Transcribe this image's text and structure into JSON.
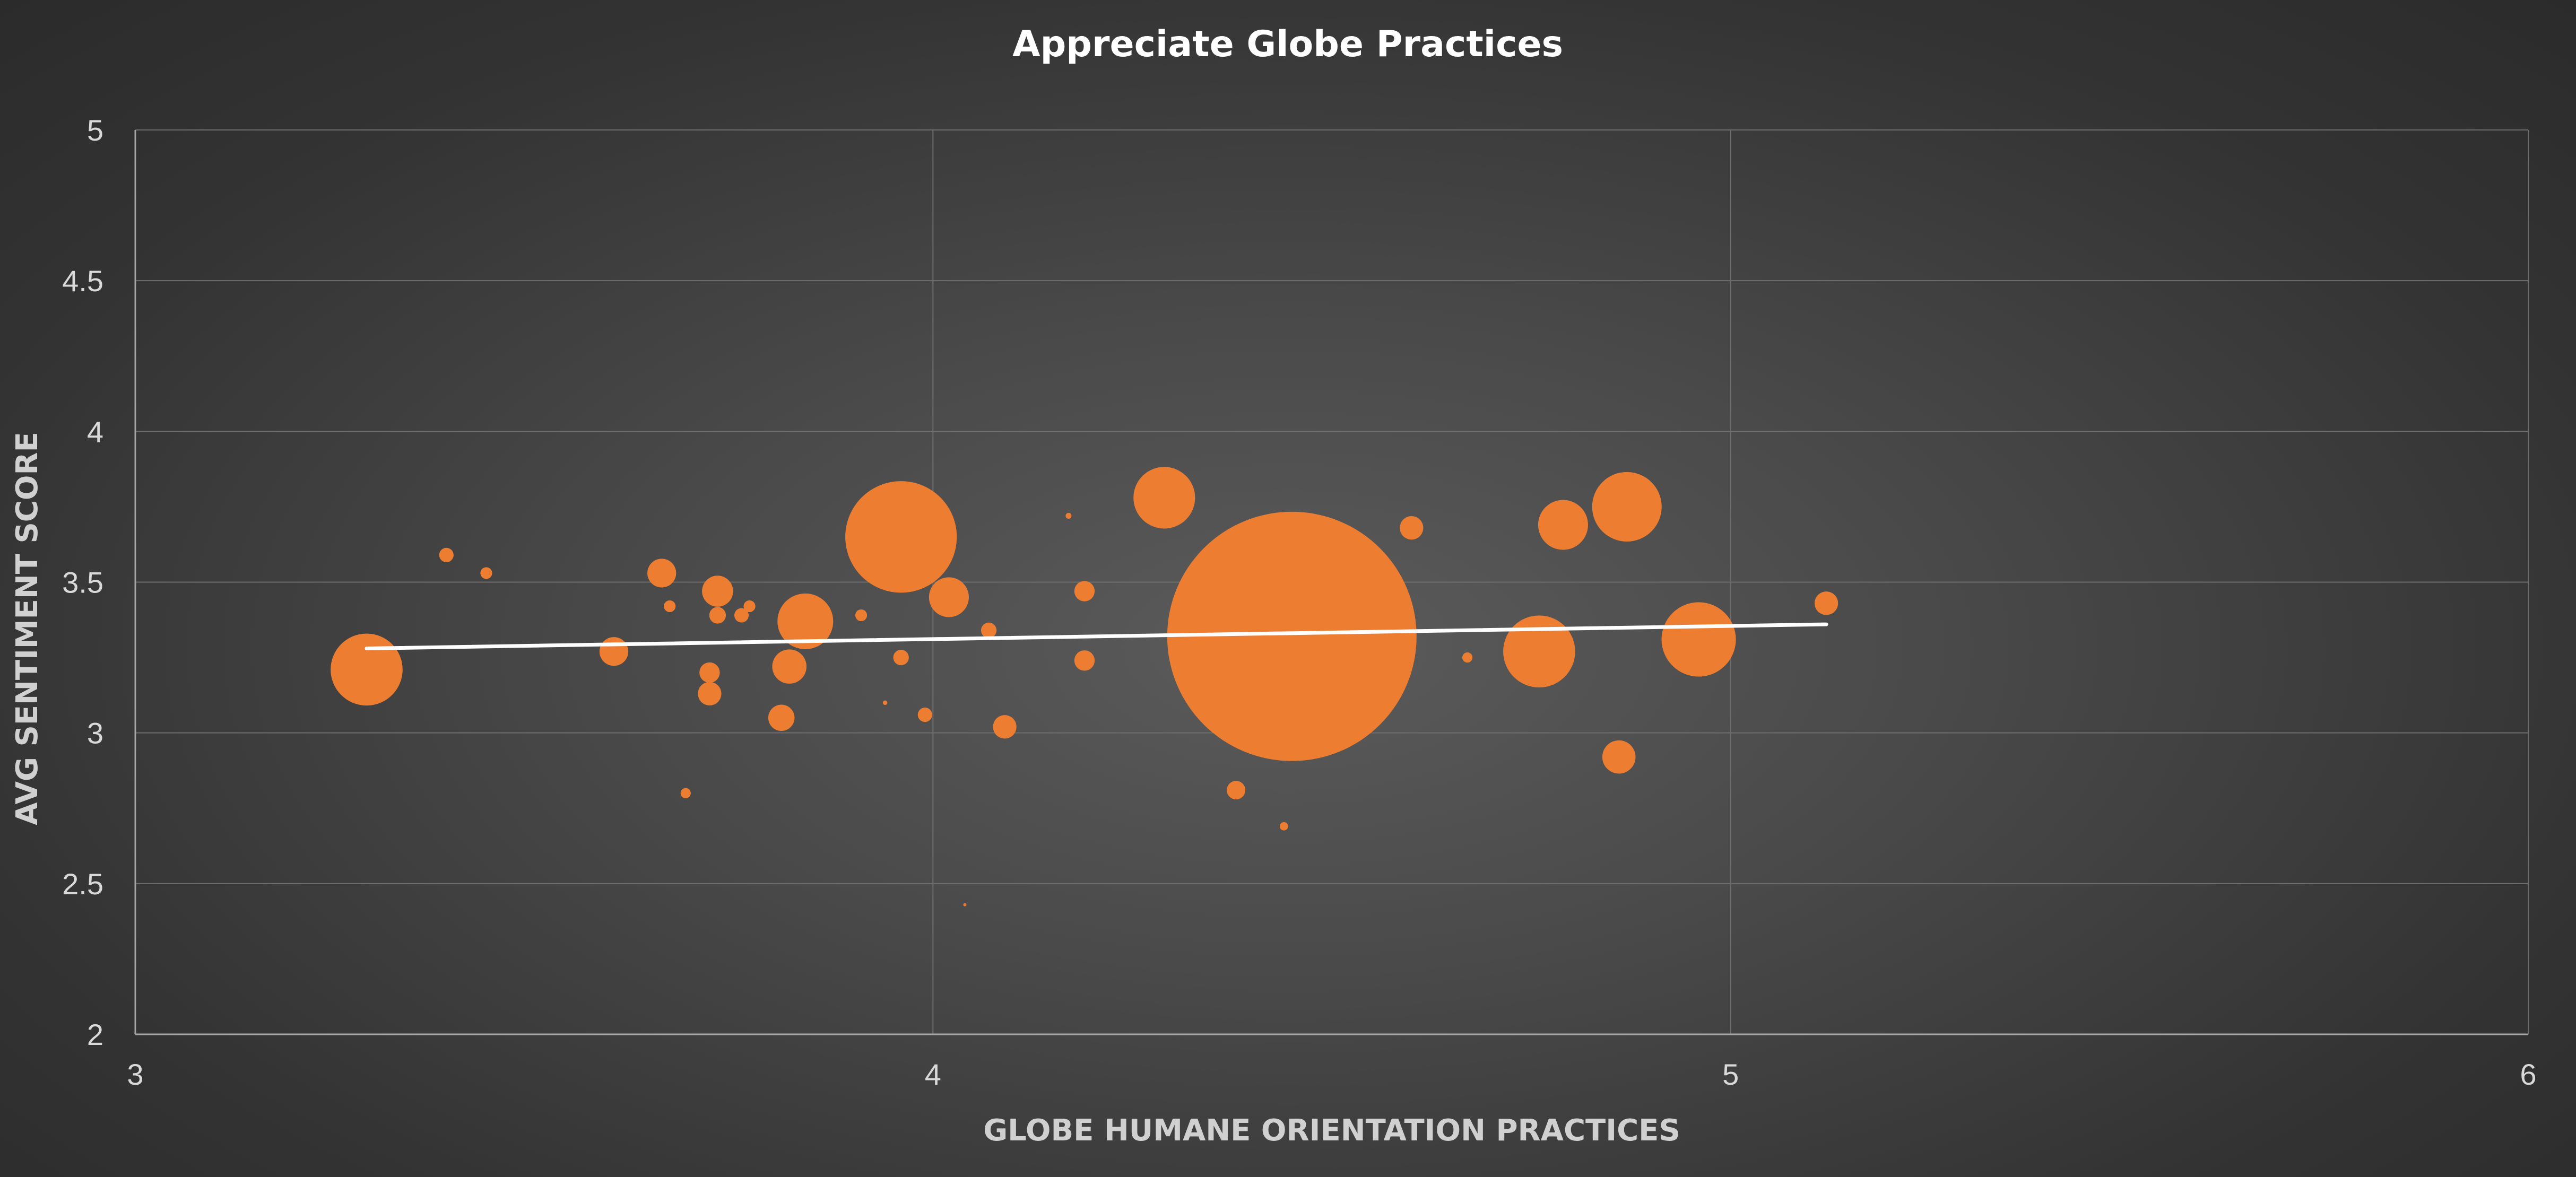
{
  "chart_data": {
    "type": "scatter",
    "variant": "bubble",
    "title": "Appreciate Globe Practices",
    "xlabel": "GLOBE HUMANE ORIENTATION PRACTICES",
    "ylabel": "AVG SENTIMENT SCORE",
    "xlim": [
      3,
      6
    ],
    "ylim": [
      2,
      5
    ],
    "xticks": [
      "3",
      "4",
      "5",
      "6"
    ],
    "yticks": [
      "2",
      "2.5",
      "3",
      "3.5",
      "4",
      "4.5",
      "5"
    ],
    "grid": true,
    "legend": "none",
    "colors": {
      "bubble": "#ED7D31",
      "trendline": "#ffffff",
      "grid": "#6e6e6e",
      "axis": "#a6a6a6"
    },
    "series": [
      {
        "points": [
          {
            "x": 3.29,
            "y": 3.21,
            "size": 7.5
          },
          {
            "x": 3.39,
            "y": 3.59,
            "size": 0.3
          },
          {
            "x": 3.44,
            "y": 3.53,
            "size": 0.2
          },
          {
            "x": 3.6,
            "y": 3.27,
            "size": 1.2
          },
          {
            "x": 3.66,
            "y": 3.53,
            "size": 1.2
          },
          {
            "x": 3.67,
            "y": 3.42,
            "size": 0.2
          },
          {
            "x": 3.69,
            "y": 2.8,
            "size": 0.15
          },
          {
            "x": 3.72,
            "y": 3.2,
            "size": 0.6
          },
          {
            "x": 3.72,
            "y": 3.13,
            "size": 0.8
          },
          {
            "x": 3.73,
            "y": 3.47,
            "size": 1.4
          },
          {
            "x": 3.73,
            "y": 3.39,
            "size": 0.4
          },
          {
            "x": 3.76,
            "y": 3.39,
            "size": 0.3
          },
          {
            "x": 3.77,
            "y": 3.42,
            "size": 0.2
          },
          {
            "x": 3.81,
            "y": 3.05,
            "size": 1.0
          },
          {
            "x": 3.82,
            "y": 3.22,
            "size": 1.7
          },
          {
            "x": 3.84,
            "y": 3.37,
            "size": 4.5
          },
          {
            "x": 3.91,
            "y": 3.39,
            "size": 0.2
          },
          {
            "x": 3.94,
            "y": 3.1,
            "size": 0.03
          },
          {
            "x": 3.96,
            "y": 3.25,
            "size": 0.35
          },
          {
            "x": 3.96,
            "y": 3.65,
            "size": 18.0
          },
          {
            "x": 3.99,
            "y": 3.06,
            "size": 0.3
          },
          {
            "x": 4.02,
            "y": 3.45,
            "size": 2.3
          },
          {
            "x": 4.04,
            "y": 2.43,
            "size": 0.01
          },
          {
            "x": 4.07,
            "y": 3.34,
            "size": 0.35
          },
          {
            "x": 4.09,
            "y": 3.02,
            "size": 0.8
          },
          {
            "x": 4.17,
            "y": 3.72,
            "size": 0.05
          },
          {
            "x": 4.19,
            "y": 3.47,
            "size": 0.6
          },
          {
            "x": 4.19,
            "y": 3.24,
            "size": 0.6
          },
          {
            "x": 4.29,
            "y": 3.78,
            "size": 5.5
          },
          {
            "x": 4.38,
            "y": 2.81,
            "size": 0.5
          },
          {
            "x": 4.44,
            "y": 2.69,
            "size": 0.1
          },
          {
            "x": 4.45,
            "y": 3.32,
            "size": 90.0
          },
          {
            "x": 4.6,
            "y": 3.68,
            "size": 0.8
          },
          {
            "x": 4.67,
            "y": 3.25,
            "size": 0.15
          },
          {
            "x": 4.76,
            "y": 3.27,
            "size": 7.5
          },
          {
            "x": 4.79,
            "y": 3.69,
            "size": 3.6
          },
          {
            "x": 4.87,
            "y": 3.75,
            "size": 7.0
          },
          {
            "x": 4.86,
            "y": 2.92,
            "size": 1.6
          },
          {
            "x": 4.96,
            "y": 3.31,
            "size": 8.0
          },
          {
            "x": 5.12,
            "y": 3.43,
            "size": 0.8
          }
        ]
      }
    ],
    "trendline": {
      "type": "linear",
      "x": [
        3.29,
        5.12
      ],
      "y": [
        3.28,
        3.36
      ]
    }
  }
}
